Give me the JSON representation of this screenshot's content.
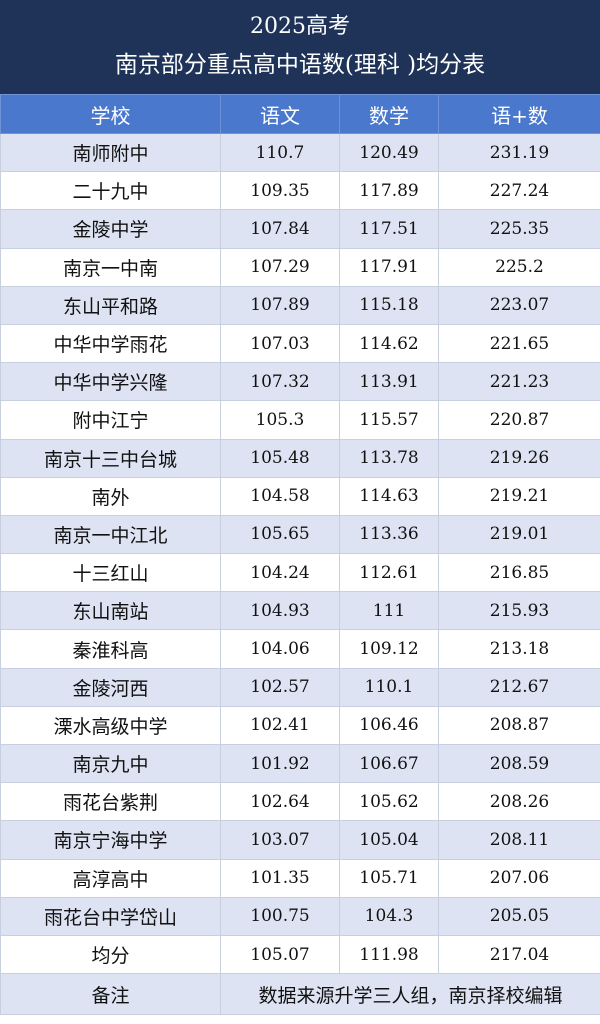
{
  "header": {
    "title_line1": "2025高考",
    "title_line2": "南京部分重点高中语数(理科 )均分表"
  },
  "table": {
    "columns": [
      "学校",
      "语文",
      "数学",
      "语+数"
    ],
    "rows": [
      [
        "南师附中",
        "110.7",
        "120.49",
        "231.19"
      ],
      [
        "二十九中",
        "109.35",
        "117.89",
        "227.24"
      ],
      [
        "金陵中学",
        "107.84",
        "117.51",
        "225.35"
      ],
      [
        "南京一中南",
        "107.29",
        "117.91",
        "225.2"
      ],
      [
        "东山平和路",
        "107.89",
        "115.18",
        "223.07"
      ],
      [
        "中华中学雨花",
        "107.03",
        "114.62",
        "221.65"
      ],
      [
        "中华中学兴隆",
        "107.32",
        "113.91",
        "221.23"
      ],
      [
        "附中江宁",
        "105.3",
        "115.57",
        "220.87"
      ],
      [
        "南京十三中台城",
        "105.48",
        "113.78",
        "219.26"
      ],
      [
        "南外",
        "104.58",
        "114.63",
        "219.21"
      ],
      [
        "南京一中江北",
        "105.65",
        "113.36",
        "219.01"
      ],
      [
        "十三红山",
        "104.24",
        "112.61",
        "216.85"
      ],
      [
        "东山南站",
        "104.93",
        "111",
        "215.93"
      ],
      [
        "秦淮科高",
        "104.06",
        "109.12",
        "213.18"
      ],
      [
        "金陵河西",
        "102.57",
        "110.1",
        "212.67"
      ],
      [
        "溧水高级中学",
        "102.41",
        "106.46",
        "208.87"
      ],
      [
        "南京九中",
        "101.92",
        "106.67",
        "208.59"
      ],
      [
        "雨花台紫荆",
        "102.64",
        "105.62",
        "208.26"
      ],
      [
        "南京宁海中学",
        "103.07",
        "105.04",
        "208.11"
      ],
      [
        "高淳高中",
        "101.35",
        "105.71",
        "207.06"
      ],
      [
        "雨花台中学岱山",
        "100.75",
        "104.3",
        "205.05"
      ]
    ],
    "average": [
      "均分",
      "105.07",
      "111.98",
      "217.04"
    ],
    "note_label": "备注",
    "note_text": "数据来源升学三人组，南京择校编辑"
  }
}
